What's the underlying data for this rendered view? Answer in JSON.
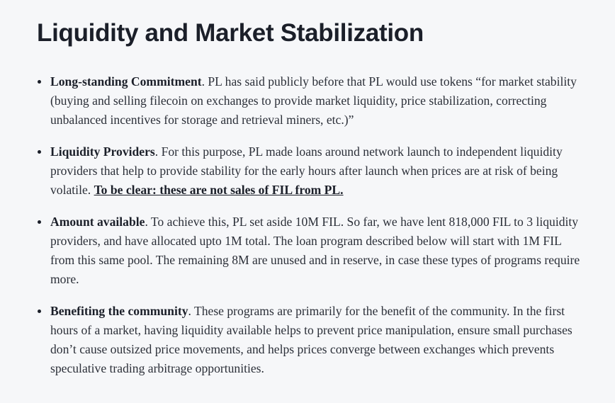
{
  "title": "Liquidity and Market Stabilization",
  "items": [
    {
      "lead": "Long-standing Commitment",
      "text": ". PL has said publicly before that PL would use tokens “for market stability (buying and selling filecoin on exchanges to provide market liquidity, price stabilization, correcting unbalanced incentives for storage and retrieval miners, etc.)”"
    },
    {
      "lead": "Liquidity Providers",
      "text": ". For this purpose, PL made loans around network launch to independent liquidity providers that help to provide stability for the early hours after launch when prices are at risk of being volatile. ",
      "emphasis": "To be clear: these are not sales of FIL from PL."
    },
    {
      "lead": "Amount available",
      "text": ". To achieve this, PL set aside 10M FIL. So far, we have lent 818,000 FIL to 3 liquidity providers, and have allocated upto 1M total. The loan program described below will start with 1M FIL from this same pool. The remaining 8M are unused and in reserve, in case these types of programs require more."
    },
    {
      "lead": "Benefiting the community",
      "text": ". These programs are primarily for the benefit of the community. In the first hours of a market, having liquidity available helps to prevent price manipulation, ensure small purchases don’t cause outsized price movements, and helps prices converge between exchanges which prevents speculative trading arbitrage opportunities."
    }
  ]
}
